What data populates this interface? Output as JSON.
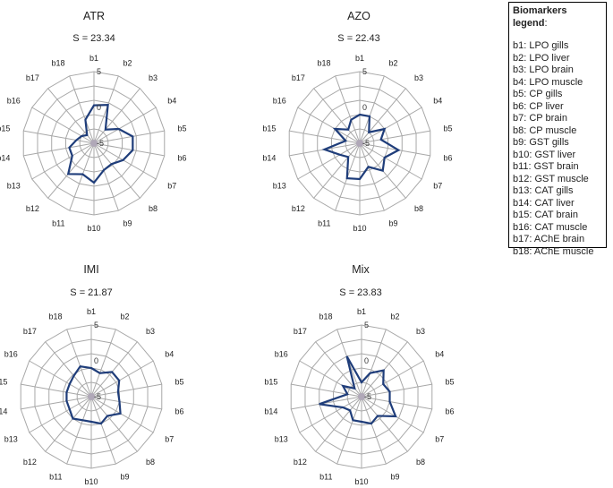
{
  "legend": {
    "title": "Biomarkers legend",
    "title_suffix": ":",
    "items": [
      "b1: LPO gills",
      "b2: LPO liver",
      "b3: LPO brain",
      "b4: LPO muscle",
      "b5: CP gills",
      "b6: CP liver",
      "b7: CP brain",
      "b8: CP muscle",
      "b9: GST gills",
      "b10: GST liver",
      "b11: GST brain",
      "b12: GST muscle",
      "b13: CAT gills",
      "b14: CAT liver",
      "b15: CAT brain",
      "b16: CAT muscle",
      "b17: AChE brain",
      "b18: AChE muscle"
    ]
  },
  "chart_data": [
    {
      "type": "radar",
      "title": "ATR",
      "subtitle": "S = 23.34",
      "categories": [
        "b1",
        "b2",
        "b3",
        "b4",
        "b5",
        "b6",
        "b7",
        "b8",
        "b9",
        "b10",
        "b11",
        "b12",
        "b13",
        "b14",
        "b15",
        "b16",
        "b17",
        "b18"
      ],
      "rlim": [
        -5,
        5
      ],
      "ticks": [
        -5,
        0,
        5
      ],
      "series": [
        {
          "values": [
            0.3,
            0.7,
            -2.5,
            -1.0,
            0.5,
            0.5,
            -0.3,
            -1.2,
            -1.0,
            0.5,
            -0.4,
            0.6,
            -1.5,
            -1.5,
            -2.5,
            -3.0,
            -3.5,
            -1.5
          ]
        }
      ],
      "line_color": "#1f3d7a",
      "grid_color": "#a8a8a8"
    },
    {
      "type": "radar",
      "title": "AZO",
      "subtitle": "S = 22.43",
      "categories": [
        "b1",
        "b2",
        "b3",
        "b4",
        "b5",
        "b6",
        "b7",
        "b8",
        "b9",
        "b10",
        "b11",
        "b12",
        "b13",
        "b14",
        "b15",
        "b16",
        "b17",
        "b18"
      ],
      "rlim": [
        -5,
        5
      ],
      "ticks": [
        -5,
        0,
        5
      ],
      "series": [
        {
          "values": [
            -1.0,
            -1.0,
            -3.0,
            -1.0,
            -2.0,
            0.5,
            -1.0,
            0.0,
            -1.5,
            0.0,
            0.2,
            -2.5,
            -1.8,
            0.0,
            -3.0,
            -1.0,
            -2.5,
            -1.5
          ]
        }
      ],
      "line_color": "#1f3d7a",
      "grid_color": "#a8a8a8"
    },
    {
      "type": "radar",
      "title": "IMI",
      "subtitle": "S = 21.87",
      "categories": [
        "b1",
        "b2",
        "b3",
        "b4",
        "b5",
        "b6",
        "b7",
        "b8",
        "b9",
        "b10",
        "b11",
        "b12",
        "b13",
        "b14",
        "b15",
        "b16",
        "b17",
        "b18"
      ],
      "rlim": [
        -5,
        5
      ],
      "ticks": [
        -5,
        0,
        5
      ],
      "series": [
        {
          "values": [
            -1.0,
            -1.5,
            -0.5,
            -0.5,
            -1.2,
            -1.0,
            -0.3,
            -1.5,
            -1.0,
            -1.5,
            -1.5,
            -1.0,
            -1.5,
            -1.5,
            -1.5,
            -1.5,
            -1.2,
            -0.5
          ]
        }
      ],
      "line_color": "#1f3d7a",
      "grid_color": "#a8a8a8"
    },
    {
      "type": "radar",
      "title": "Mix",
      "subtitle": "S = 23.83",
      "categories": [
        "b1",
        "b2",
        "b3",
        "b4",
        "b5",
        "b6",
        "b7",
        "b8",
        "b9",
        "b10",
        "b11",
        "b12",
        "b13",
        "b14",
        "b15",
        "b16",
        "b17",
        "b18"
      ],
      "rlim": [
        -5,
        5
      ],
      "ticks": [
        -5,
        0,
        5
      ],
      "series": [
        {
          "values": [
            -3.0,
            -1.5,
            -0.2,
            -1.5,
            -1.0,
            -1.0,
            0.5,
            -1.5,
            -1.0,
            -1.5,
            -1.5,
            -2.5,
            -2.0,
            1.0,
            -3.0,
            -2.0,
            -3.5,
            1.0
          ]
        }
      ],
      "line_color": "#1f3d7a",
      "grid_color": "#a8a8a8"
    }
  ]
}
